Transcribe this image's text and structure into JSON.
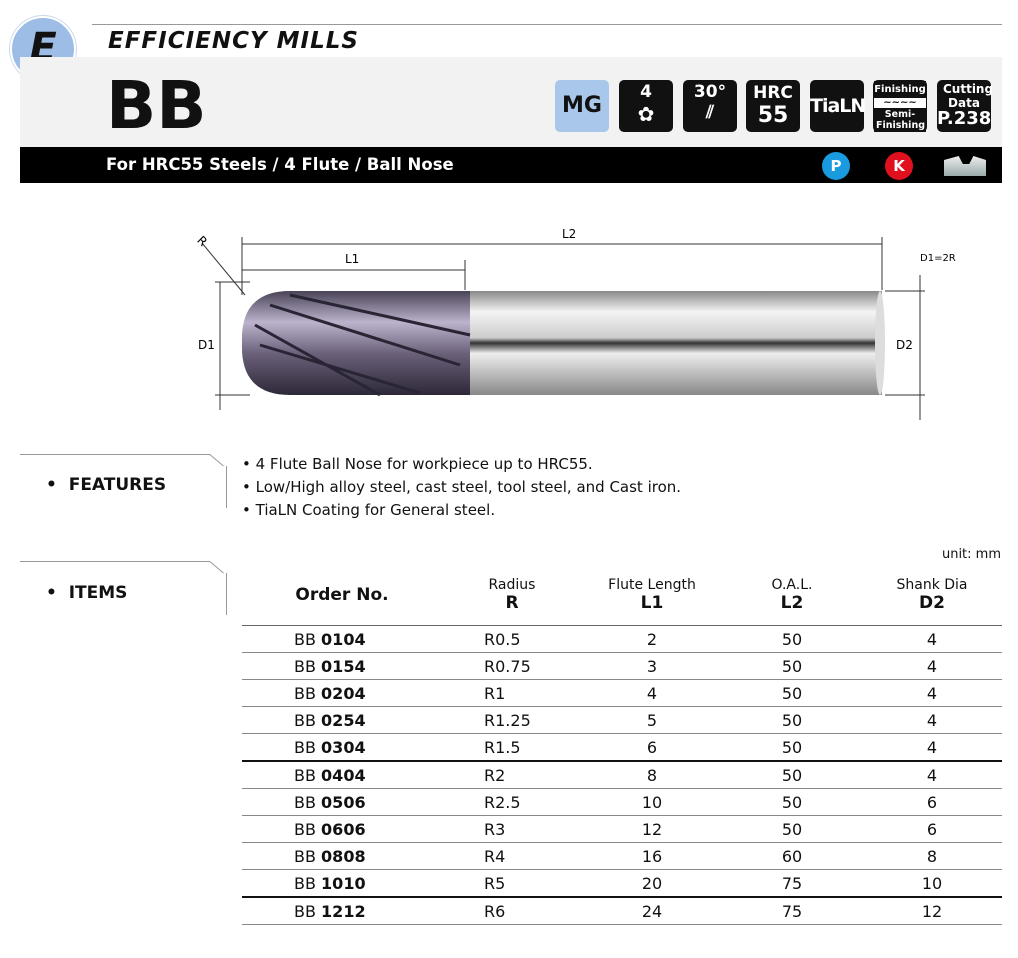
{
  "header": {
    "section_letter": "E",
    "series": "EFFICIENCY MILLS",
    "model": "BB",
    "subtitle": "For HRC55 Steels  /  4 Flute  /  Ball Nose"
  },
  "badges": [
    {
      "icon": "material-group-badge",
      "label": "MG",
      "bg": "#a9c7ea"
    },
    {
      "icon": "flute-count-badge",
      "label": "4"
    },
    {
      "icon": "helix-angle-badge",
      "label": "30°"
    },
    {
      "icon": "hardness-badge",
      "label": "HRC",
      "value": "55"
    },
    {
      "icon": "coating-badge",
      "label": "TiaLN"
    },
    {
      "icon": "finishing-badge",
      "label": "Finishing",
      "sub": "Semi-Finishing"
    },
    {
      "icon": "cutting-data-badge",
      "label": "Cutting Data",
      "page": "P.238"
    }
  ],
  "materials": [
    {
      "label": "P",
      "color": "#1a9be0"
    },
    {
      "label": "K",
      "color": "#e0101e"
    }
  ],
  "diagram": {
    "r": "R",
    "l1": "L1",
    "l2": "L2",
    "d1": "D1",
    "d2": "D2",
    "note": "D1=2R"
  },
  "features": {
    "title": "FEATURES",
    "items": [
      "4 Flute Ball Nose for workpiece up to HRC55.",
      "Low/High alloy steel, cast steel, tool steel, and Cast iron.",
      "TiaLN Coating for General steel."
    ]
  },
  "items": {
    "title": "ITEMS",
    "unit": "unit: mm",
    "columns": [
      {
        "top": "",
        "main": "Order No."
      },
      {
        "top": "Radius",
        "main": "R"
      },
      {
        "top": "Flute Length",
        "main": "L1"
      },
      {
        "top": "O.A.L.",
        "main": "L2"
      },
      {
        "top": "Shank Dia",
        "main": "D2"
      }
    ],
    "rows": [
      {
        "prefix": "BB",
        "code": "0104",
        "r": "R0.5",
        "l1": "2",
        "l2": "50",
        "d2": "4"
      },
      {
        "prefix": "BB",
        "code": "0154",
        "r": "R0.75",
        "l1": "3",
        "l2": "50",
        "d2": "4"
      },
      {
        "prefix": "BB",
        "code": "0204",
        "r": "R1",
        "l1": "4",
        "l2": "50",
        "d2": "4"
      },
      {
        "prefix": "BB",
        "code": "0254",
        "r": "R1.25",
        "l1": "5",
        "l2": "50",
        "d2": "4"
      },
      {
        "prefix": "BB",
        "code": "0304",
        "r": "R1.5",
        "l1": "6",
        "l2": "50",
        "d2": "4"
      },
      {
        "prefix": "BB",
        "code": "0404",
        "r": "R2",
        "l1": "8",
        "l2": "50",
        "d2": "4"
      },
      {
        "prefix": "BB",
        "code": "0506",
        "r": "R2.5",
        "l1": "10",
        "l2": "50",
        "d2": "6"
      },
      {
        "prefix": "BB",
        "code": "0606",
        "r": "R3",
        "l1": "12",
        "l2": "50",
        "d2": "6"
      },
      {
        "prefix": "BB",
        "code": "0808",
        "r": "R4",
        "l1": "16",
        "l2": "60",
        "d2": "8"
      },
      {
        "prefix": "BB",
        "code": "1010",
        "r": "R5",
        "l1": "20",
        "l2": "75",
        "d2": "10"
      },
      {
        "prefix": "BB",
        "code": "1212",
        "r": "R6",
        "l1": "24",
        "l2": "75",
        "d2": "12"
      }
    ]
  }
}
